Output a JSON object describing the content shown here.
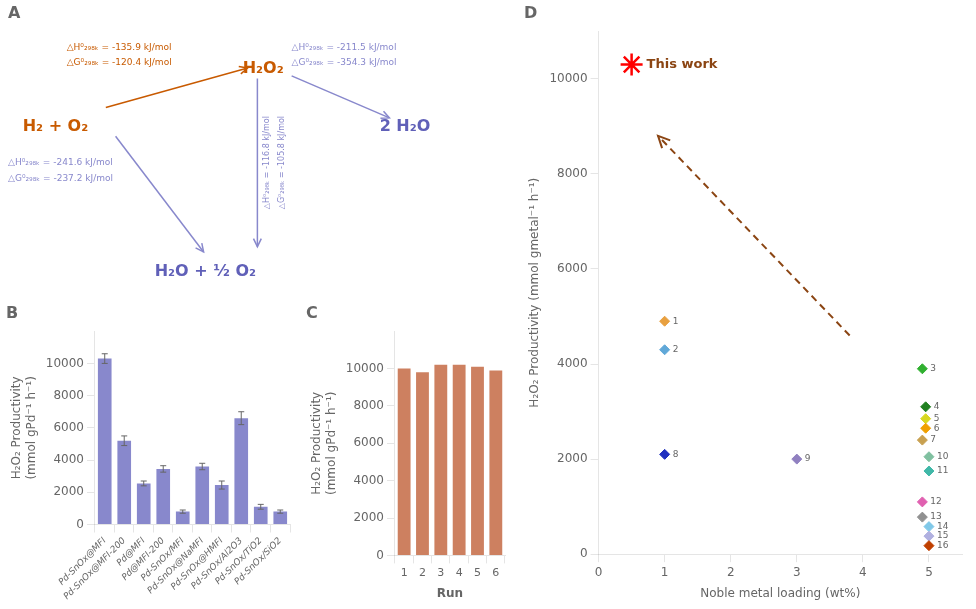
{
  "chart_data": [
    {
      "type": "diagram",
      "title": "A",
      "categories": [
        "H₂ + O₂",
        "H₂O₂",
        "H₂O + ½ O₂",
        "2 H₂O"
      ],
      "colors": [
        "#c85a00",
        "#c85a00",
        "#6060b8",
        "#6060b8"
      ],
      "arrows": [
        {
          "from": "H₂ + O₂",
          "to": "H₂O₂",
          "color": "#c85a00",
          "annotations": [
            "△H⁰₂₉₈ₖ = -135.9 kJ/mol",
            "△G⁰₂₉₈ₖ = -120.4 kJ/mol"
          ]
        },
        {
          "from": "H₂ + O₂",
          "to": "H₂O + ½ O₂",
          "color": "#8888cc",
          "annotations": [
            "△H⁰₂₉₈ₖ = -241.6 kJ/mol",
            "△G⁰₂₉₈ₖ = -237.2 kJ/mol"
          ]
        },
        {
          "from": "H₂O₂",
          "to": "2 H₂O",
          "color": "#8888cc",
          "annotations": [
            "△H⁰₂₉₈ₖ = -211.5 kJ/mol",
            "△G⁰₂₉₈ₖ = -354.3 kJ/mol"
          ]
        },
        {
          "from": "H₂O₂",
          "to": "H₂O + ½ O₂",
          "color": "#8888cc",
          "annotations": [
            "△H⁰₂₉₈ₖ = -116.8 kJ/mol",
            "△G⁰₂₉₈ₖ = -105.8 kJ/mol"
          ]
        }
      ]
    },
    {
      "type": "bar",
      "title": "B",
      "categories": [
        "Pd-SnOx@MFI",
        "Pd-SnOx@MFI-200",
        "Pd@MFI",
        "Pd@MFI-200",
        "Pd-SnOx/MFI",
        "Pd-SnOx@NaMFI",
        "Pd-SnOx@HMFI",
        "Pd-SnOx/Al2O3",
        "Pd-SnOx/TiO2",
        "Pd-SnOx/SiO2"
      ],
      "values": [
        10300,
        5200,
        2550,
        3450,
        800,
        3600,
        2450,
        6600,
        1100,
        800
      ],
      "errors": [
        300,
        300,
        150,
        200,
        100,
        200,
        250,
        400,
        150,
        100
      ],
      "color": "#8888cc",
      "ylabel": [
        "H₂O₂ Productivity",
        "(mmol gPd⁻¹ h⁻¹)"
      ],
      "ylim": [
        0,
        12000
      ],
      "yticks": [
        0,
        2000,
        4000,
        6000,
        8000,
        10000
      ],
      "grid": false
    },
    {
      "type": "bar",
      "title": "C",
      "categories": [
        "1",
        "2",
        "3",
        "4",
        "5",
        "6"
      ],
      "values": [
        10000,
        9800,
        10200,
        10200,
        10100,
        9900
      ],
      "color": "#cd8060",
      "xlabel": "Run",
      "ylabel": [
        "H₂O₂ Productivity",
        "(mmol gPd⁻¹ h⁻¹)"
      ],
      "ylim": [
        0,
        12000
      ],
      "yticks": [
        0,
        2000,
        4000,
        6000,
        8000,
        10000
      ],
      "grid": false
    },
    {
      "type": "scatter",
      "title": "D",
      "xlabel": "Noble metal loading (wt%)",
      "ylabel": "H₂O₂ Productivity (mmol gmetal⁻¹ h⁻¹)",
      "xlim": [
        0,
        5.5
      ],
      "xticks": [
        0,
        1,
        2,
        3,
        4,
        5
      ],
      "ylim": [
        0,
        11000
      ],
      "yticks": [
        0,
        2000,
        4000,
        6000,
        8000,
        10000
      ],
      "grid": false,
      "series": [
        {
          "marker": "star",
          "color": "red",
          "x": [
            0.5
          ],
          "values": [
            10300
          ],
          "labels": [
            "This work"
          ],
          "label_color": "#8b4513"
        },
        {
          "marker": "diamond",
          "x": [
            1.0,
            1.0,
            4.9,
            4.95,
            4.95,
            4.95,
            4.9,
            1.0,
            3.0,
            5.0,
            5.0,
            4.9,
            4.9,
            5.0,
            5.0,
            5.0
          ],
          "values": [
            4900,
            4300,
            3900,
            3100,
            2850,
            2650,
            2400,
            2100,
            2000,
            2050,
            1750,
            1100,
            780,
            580,
            380,
            180
          ],
          "colors": [
            "#e8a040",
            "#60a8d8",
            "#30b030",
            "#208020",
            "#d8d820",
            "#f0a000",
            "#c8a050",
            "#2030c0",
            "#9080c0",
            "#80c0a0",
            "#40b8a8",
            "#e060b0",
            "#909090",
            "#80c8e8",
            "#b0b0e0",
            "#c04000"
          ],
          "labels": [
            "1",
            "2",
            "3",
            "4",
            "5",
            "6",
            "7",
            "8",
            "9",
            "10",
            "11",
            "12",
            "13",
            "14",
            "15",
            "16"
          ]
        }
      ],
      "arrows": [
        {
          "from": [
            3.8,
            4600
          ],
          "to": [
            0.9,
            8800
          ],
          "color": "#8b4513",
          "line_style": "dashed"
        }
      ]
    }
  ]
}
